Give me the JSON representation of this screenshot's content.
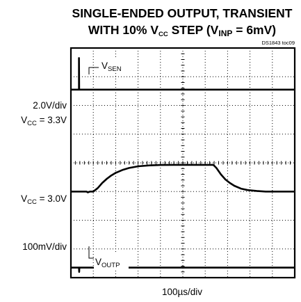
{
  "chart_data": {
    "type": "line",
    "title_line1": "SINGLE-ENDED OUTPUT, TRANSIENT",
    "title_line2": {
      "pre": "WITH 10% V",
      "sub": "CC",
      "mid": " STEP (V",
      "sub2": "INP",
      "post": " = 6mV)"
    },
    "figure_id": "DS1843 toc09",
    "xlabel": "100µs/div",
    "xlim": [
      0,
      10
    ],
    "ylim": [
      0,
      8
    ],
    "grid": true,
    "labels": {
      "vsen": {
        "main": "V",
        "sub": "SEN"
      },
      "voutp": {
        "main": "V",
        "sub": "OUTP"
      },
      "scale_top": "2.0V/div",
      "vcc_hi": {
        "pre": "V",
        "sub": "CC",
        "post": " = 3.3V"
      },
      "vcc_lo": {
        "pre": "V",
        "sub": "CC",
        "post": " = 3.0V"
      },
      "scale_bottom": "100mV/div"
    },
    "series": [
      {
        "x": [
          0,
          0.35,
          0.36,
          0.36,
          0.37,
          10
        ],
        "y": [
          6.55,
          6.55,
          6.55,
          7.65,
          6.55,
          6.55
        ]
      },
      {
        "x": [
          0,
          0.65,
          0.7,
          0.75,
          0.85,
          0.9,
          1.0,
          1.2,
          1.4,
          1.6,
          1.8,
          2.0,
          2.3,
          2.6,
          3.0,
          3.5,
          4.0,
          4.6,
          5.2,
          5.8,
          6.2,
          6.35,
          6.4,
          6.5,
          6.7,
          6.9,
          7.1,
          7.3,
          7.6,
          7.9,
          8.3,
          8.7,
          9.2,
          10
        ],
        "y": [
          3.0,
          3.0,
          3.0,
          2.97,
          3.0,
          3.0,
          3.0,
          3.12,
          3.3,
          3.44,
          3.56,
          3.65,
          3.75,
          3.82,
          3.88,
          3.91,
          3.925,
          3.93,
          3.93,
          3.93,
          3.93,
          3.93,
          3.9,
          3.82,
          3.6,
          3.42,
          3.3,
          3.2,
          3.1,
          3.05,
          3.02,
          3.0,
          3.0,
          3.0
        ]
      },
      {
        "x": [
          0,
          0.35,
          0.36,
          0.37,
          0.38,
          10
        ],
        "y": [
          0.35,
          0.35,
          0.35,
          0.2,
          0.35,
          0.35
        ]
      }
    ]
  }
}
